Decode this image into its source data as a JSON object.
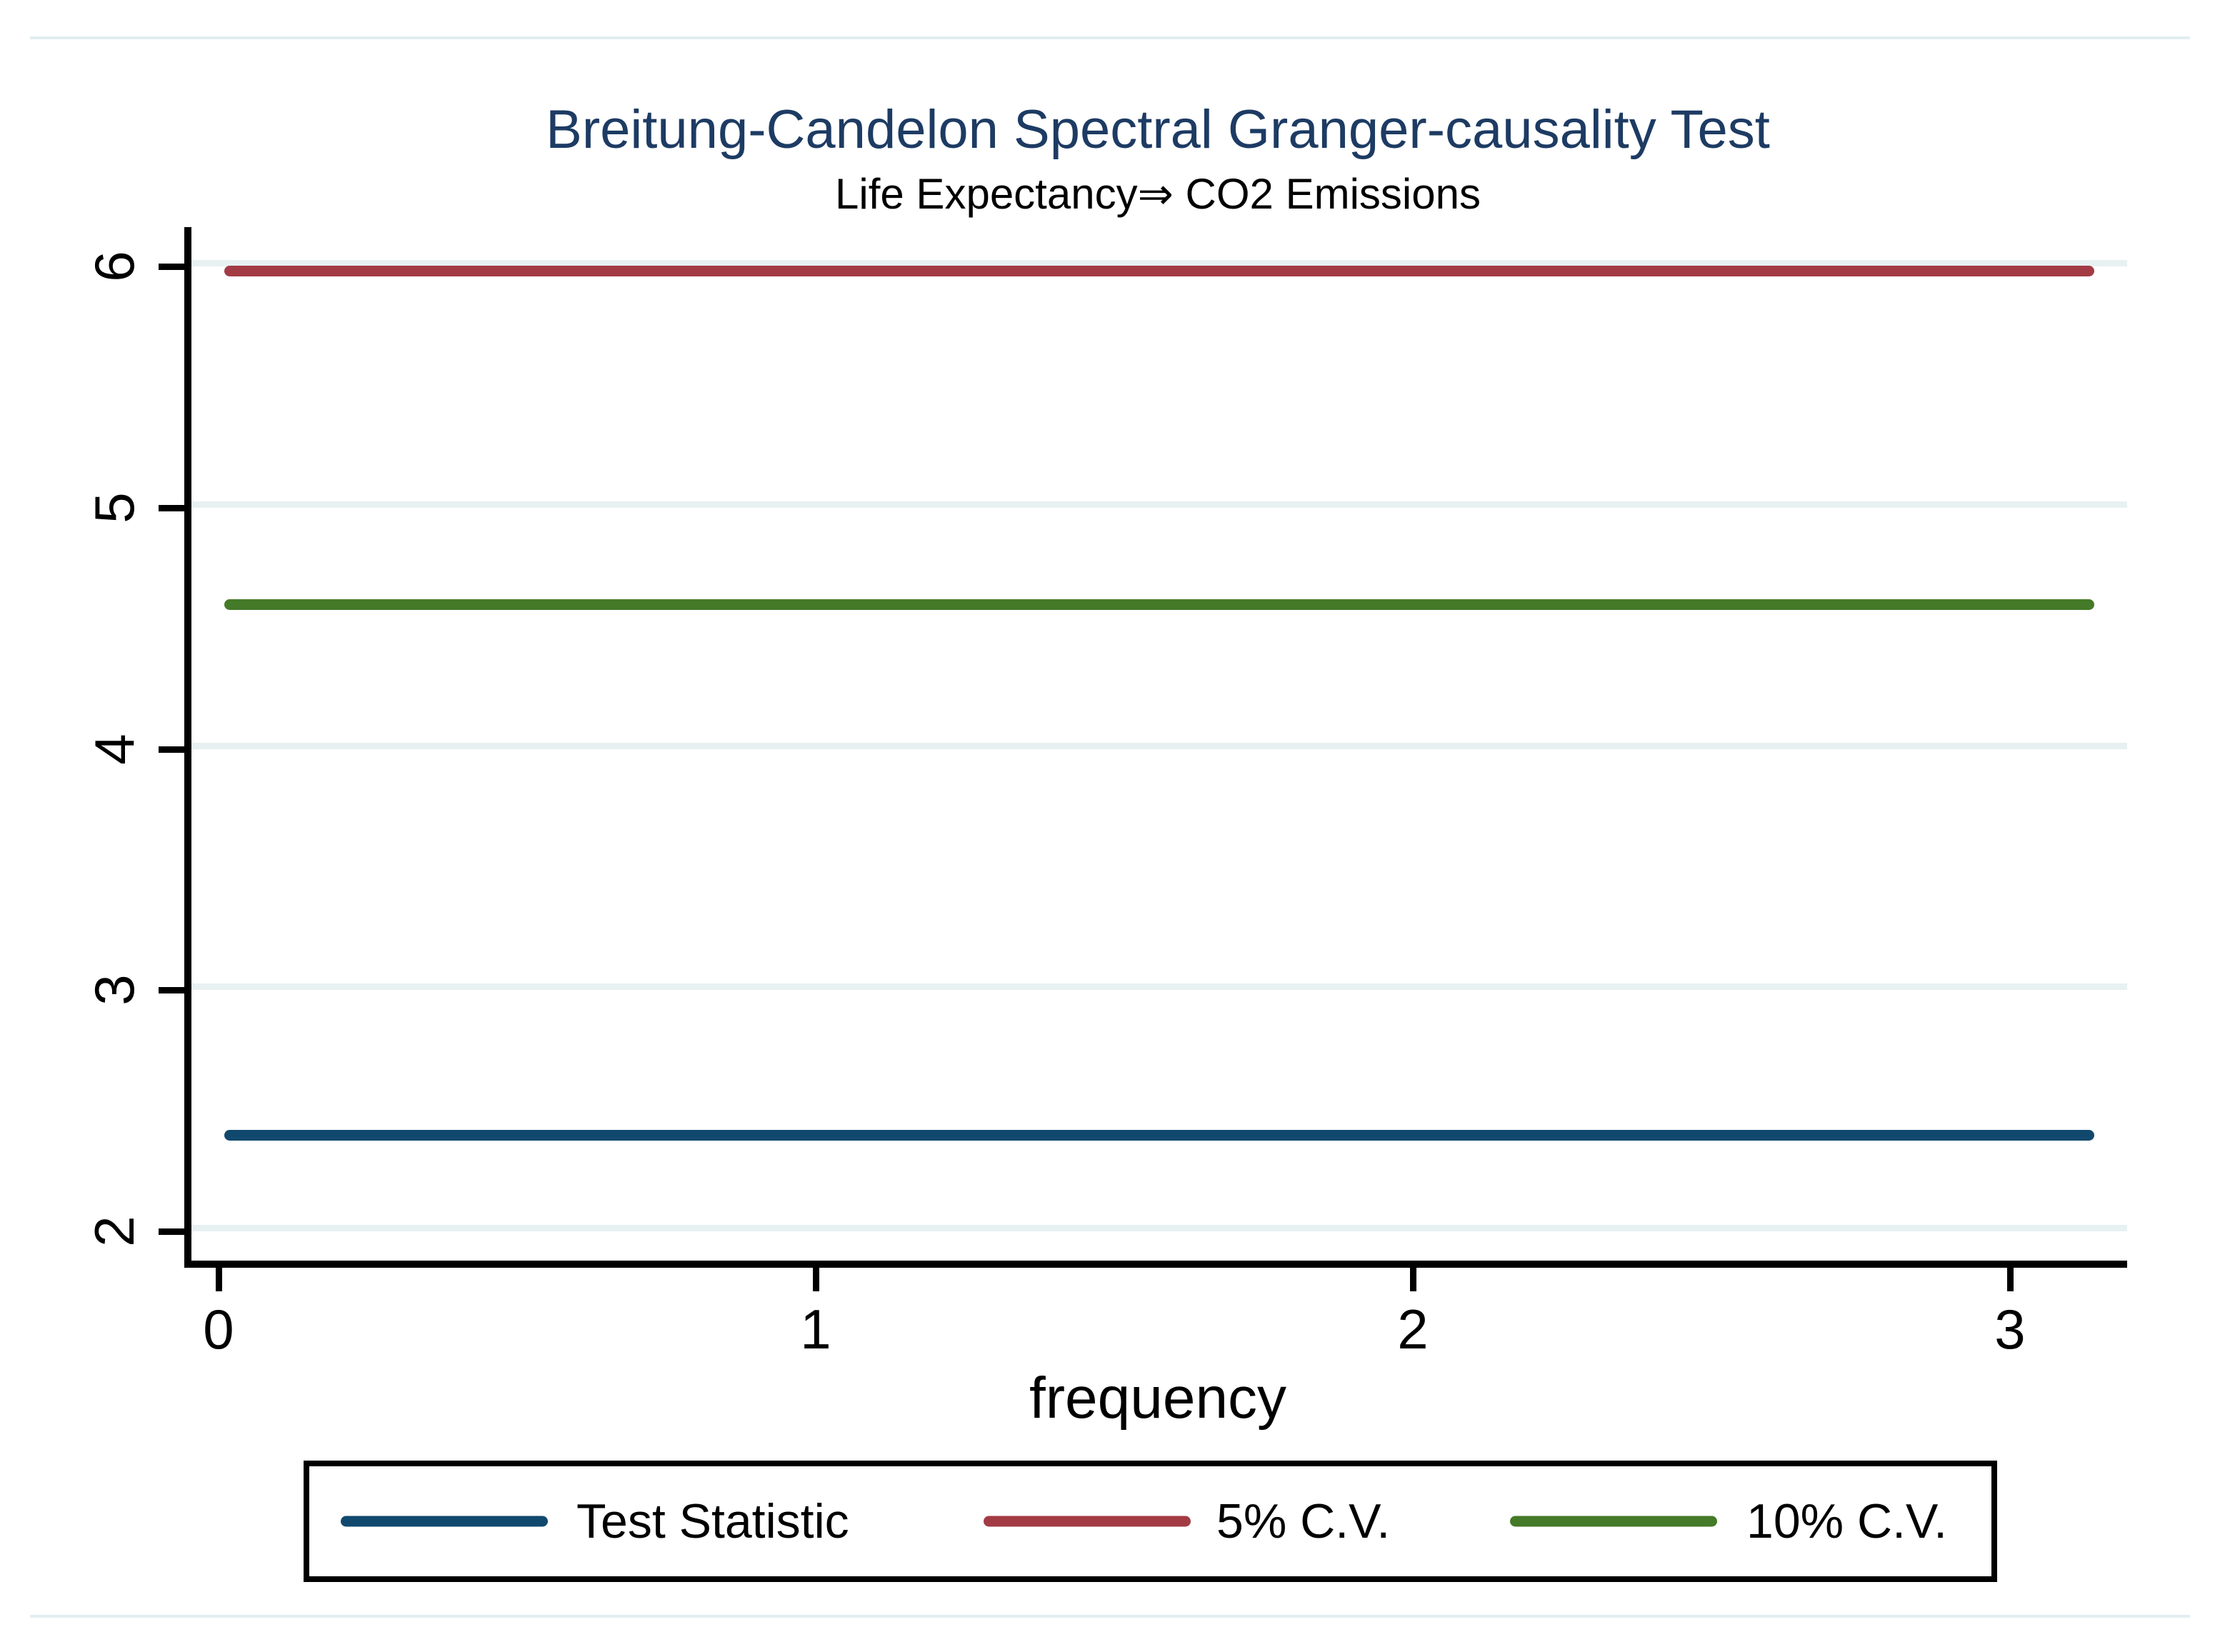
{
  "chart_data": {
    "type": "line",
    "title": "Breitung-Candelon Spectral Granger-causality Test",
    "subtitle": "Life Expectancy⇒ CO2 Emissions",
    "xlabel": "frequency",
    "x_ticks": [
      0,
      1,
      2,
      3
    ],
    "y_ticks": [
      2,
      3,
      4,
      5,
      6
    ],
    "xlim": [
      -0.05,
      3.2
    ],
    "ylim": [
      1.87,
      6.15
    ],
    "grid": "horizontal",
    "legend_position": "bottom",
    "line_x_span": [
      0.01,
      3.1416
    ],
    "series": [
      {
        "name": "Test Statistic",
        "value": 2.4,
        "color": "#11496e"
      },
      {
        "name": "5% C.V.",
        "value": 6.0,
        "color": "#a33b45"
      },
      {
        "name": "10% C.V.",
        "value": 4.6,
        "color": "#447a28"
      }
    ]
  },
  "colors": {
    "title_text": "#1d3b63",
    "gridline": "#e8f1f2",
    "axis": "#000000",
    "hairline": "#e2eef1",
    "background": "#ffffff"
  }
}
